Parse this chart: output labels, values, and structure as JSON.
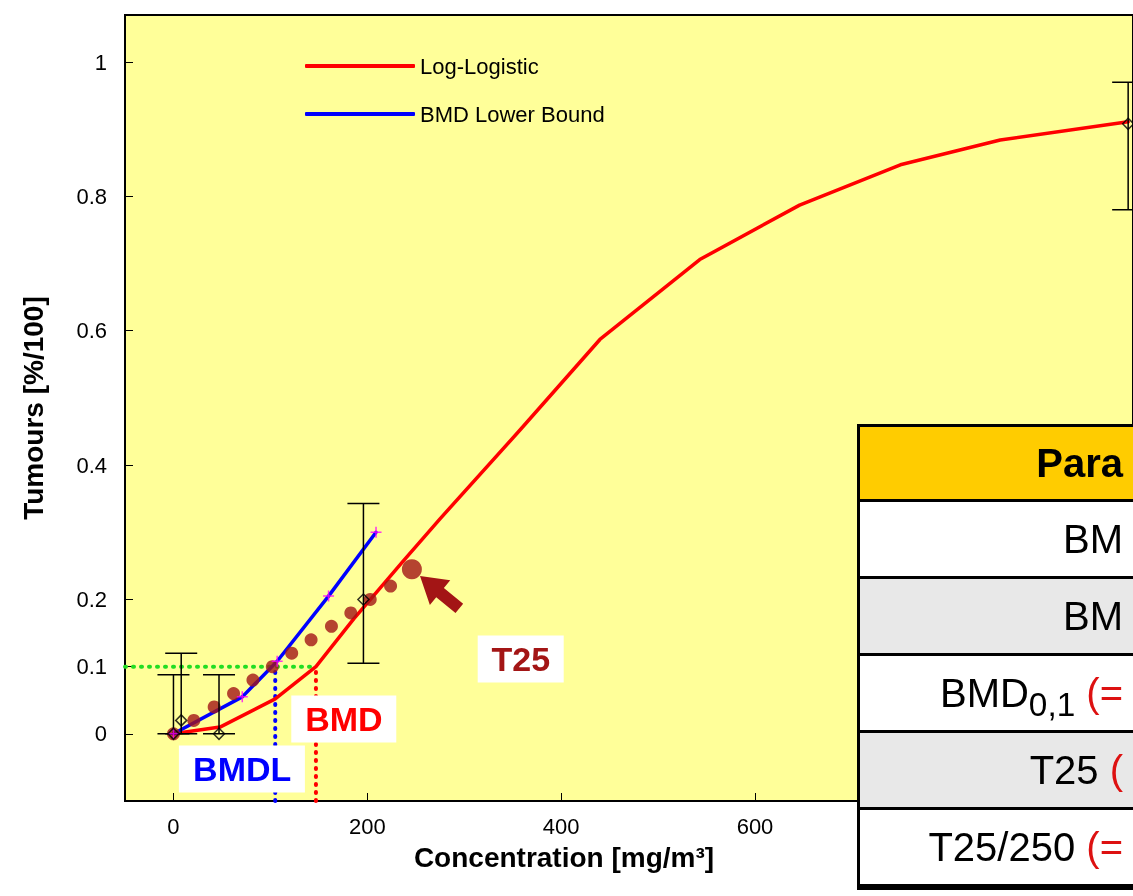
{
  "chart_data": [
    {
      "type": "line",
      "xlabel": "Concentration [mg/m³]",
      "ylabel": "Tumours [%/100]",
      "xlim": [
        -50,
        990
      ],
      "xticks": [
        0,
        200,
        400,
        600
      ],
      "ylim": [
        -0.1,
        1.07
      ],
      "yticks": [
        0,
        0.1,
        0.2,
        0.4,
        0.6,
        0.8,
        1
      ],
      "grid": false,
      "legend": "top left",
      "series": [
        {
          "name": "Log-Logistic",
          "type": "line",
          "color": "#ff0000",
          "marker": "none",
          "line_style": "solid",
          "x": [
            0,
            48,
            105,
            147,
            186,
            237,
            275,
            358,
            440,
            543,
            646,
            750,
            853,
            985
          ],
          "values": [
            0,
            0.01,
            0.052,
            0.1,
            0.171,
            0.257,
            0.32,
            0.453,
            0.587,
            0.706,
            0.787,
            0.847,
            0.884,
            0.911
          ]
        },
        {
          "name": "BMD Lower Bound",
          "type": "line",
          "color": "#0000ff",
          "marker": "none",
          "line_style": "solid",
          "x": [
            0,
            71,
            107,
            160,
            209
          ],
          "values": [
            0,
            0.055,
            0.108,
            0.205,
            0.3
          ]
        },
        {
          "type": "scatter",
          "color": "#ff00ff",
          "marker": "cross",
          "x": [
            0,
            71,
            107,
            160,
            209
          ],
          "values": [
            0,
            0.055,
            0.108,
            0.205,
            0.3
          ]
        },
        {
          "type": "line",
          "color": "#22dd22",
          "marker": "none",
          "line_style": "dotted",
          "x": [
            -50,
            147
          ],
          "values": [
            0.1,
            0.1
          ]
        },
        {
          "type": "line",
          "color": "#0000ff",
          "marker": "none",
          "line_style": "dotted",
          "x": [
            105,
            105
          ],
          "values": [
            -0.1,
            0.1
          ]
        },
        {
          "type": "line",
          "color": "#ff0000",
          "marker": "none",
          "line_style": "dotted",
          "x": [
            147,
            147
          ],
          "values": [
            -0.1,
            0.1
          ]
        },
        {
          "type": "scatter",
          "color": "#a31515",
          "marker": "circle",
          "x": [
            0,
            21,
            42,
            62,
            82,
            102,
            122,
            142,
            163,
            183,
            203,
            224
          ],
          "values": [
            0,
            0.02,
            0.04,
            0.06,
            0.08,
            0.1,
            0.12,
            0.14,
            0.16,
            0.18,
            0.2,
            0.22
          ]
        },
        {
          "type": "bubble",
          "color": "#a31515",
          "marker": "circle",
          "x": [
            246
          ],
          "values": [
            0.245
          ],
          "sizes": [
            1
          ]
        },
        {
          "type": "scatter",
          "color": "#000000",
          "marker": "diamond",
          "x": [
            0,
            8,
            47,
            196,
            985
          ],
          "values": [
            0,
            0.02,
            0,
            0.2,
            0.908
          ],
          "errors": [
            [
              0,
              0.088
            ],
            [
              0,
              0.12
            ],
            [
              0,
              0.088
            ],
            [
              0.105,
              0.343
            ],
            [
              0.78,
              0.97
            ]
          ]
        }
      ],
      "annotations": [
        {
          "text": "BMDL",
          "x": 105,
          "y": -0.052
        },
        {
          "text": "BMD",
          "x": 147,
          "y": 0.022
        },
        "T25"
      ]
    },
    {
      "type": "other",
      "title": "Para",
      "annotations": [
        "BM",
        "BM",
        "BMD$_{0,1}$ (=",
        "T25 (",
        "T25/250 (="
      ]
    }
  ]
}
